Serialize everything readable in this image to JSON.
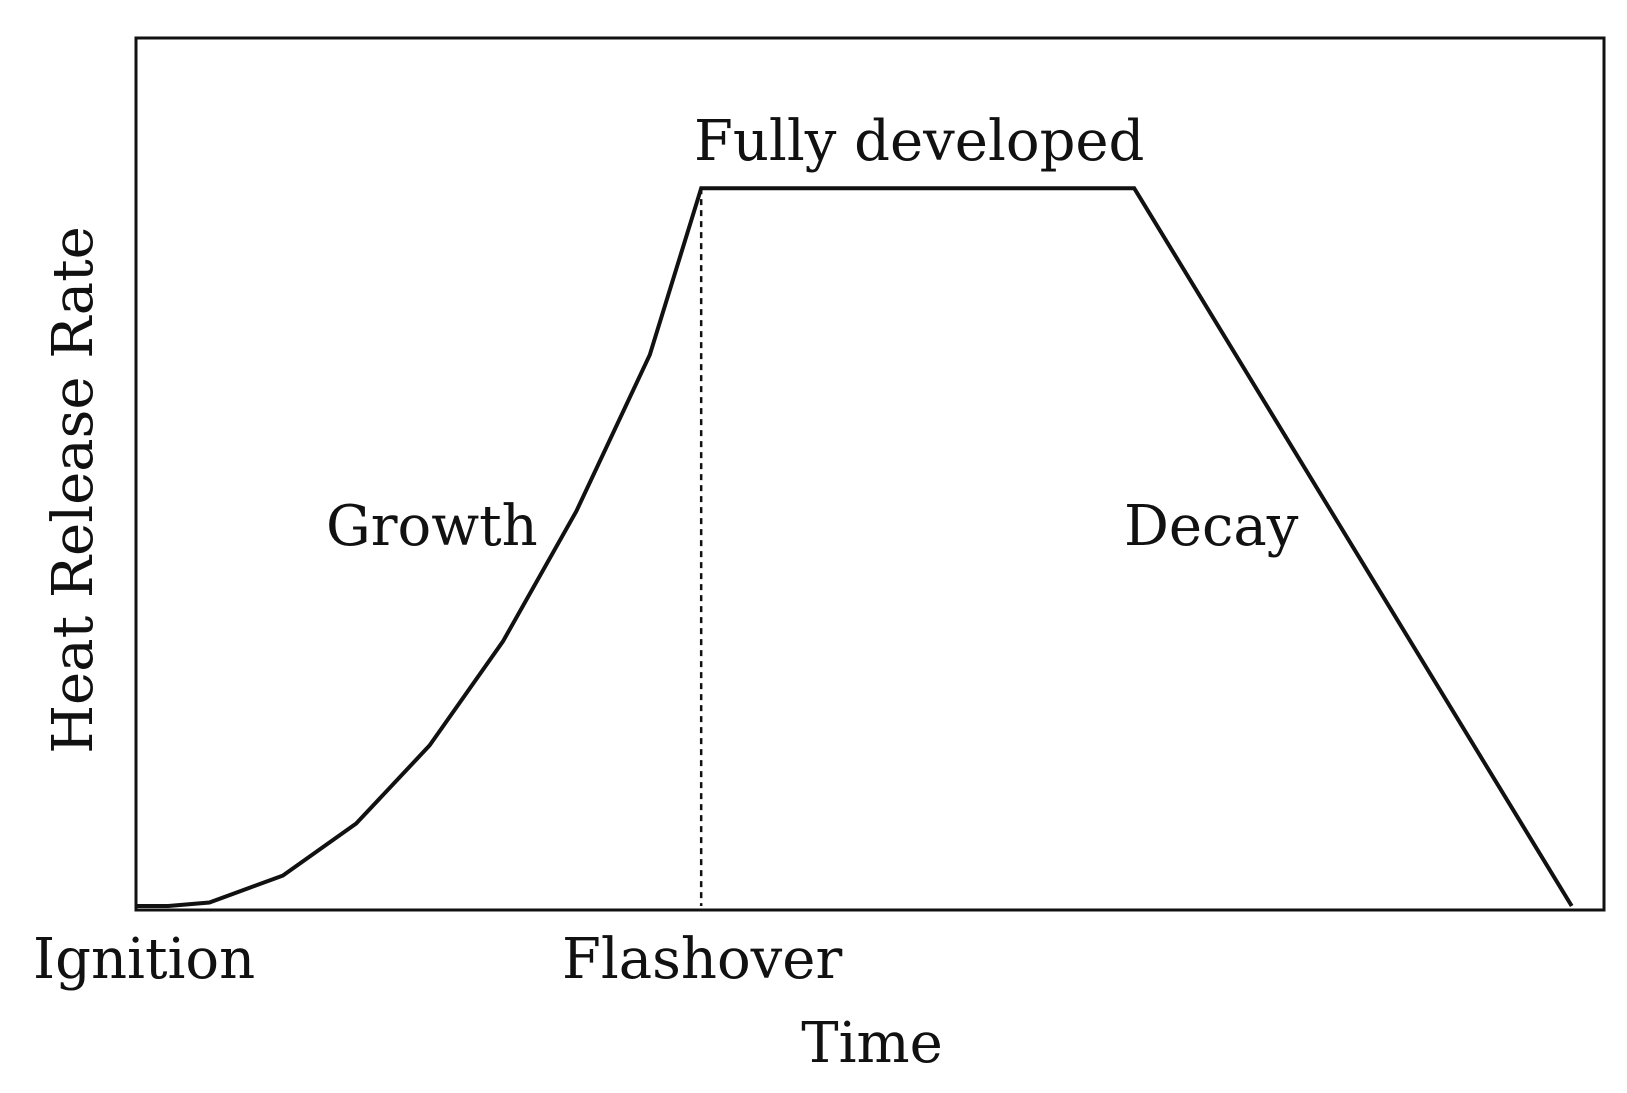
{
  "chart_data": {
    "type": "line",
    "title": "",
    "xlabel": "Time",
    "ylabel": "Heat Release Rate",
    "grid": false,
    "legend": "none",
    "tick_labels": [
      "Ignition",
      "Flashover"
    ],
    "annotations": [
      "Growth",
      "Fully developed",
      "Decay"
    ],
    "xlim": [
      0,
      100
    ],
    "ylim": [
      0,
      100
    ],
    "series": [
      {
        "x": [
          0,
          2.2,
          5,
          10,
          15,
          20,
          25,
          30,
          35,
          38.5,
          65,
          68,
          97.8
        ],
        "y": [
          0,
          0,
          0.4,
          3.5,
          9.5,
          18.5,
          30.5,
          45.5,
          63.5,
          82.7,
          82.7,
          82.7,
          0
        ]
      }
    ],
    "reference_lines": [
      {
        "orientation": "vertical",
        "x": 38.5,
        "style": "dotted"
      }
    ]
  },
  "colors": {
    "line": "#111111",
    "frame": "#111111",
    "background": "#ffffff"
  }
}
